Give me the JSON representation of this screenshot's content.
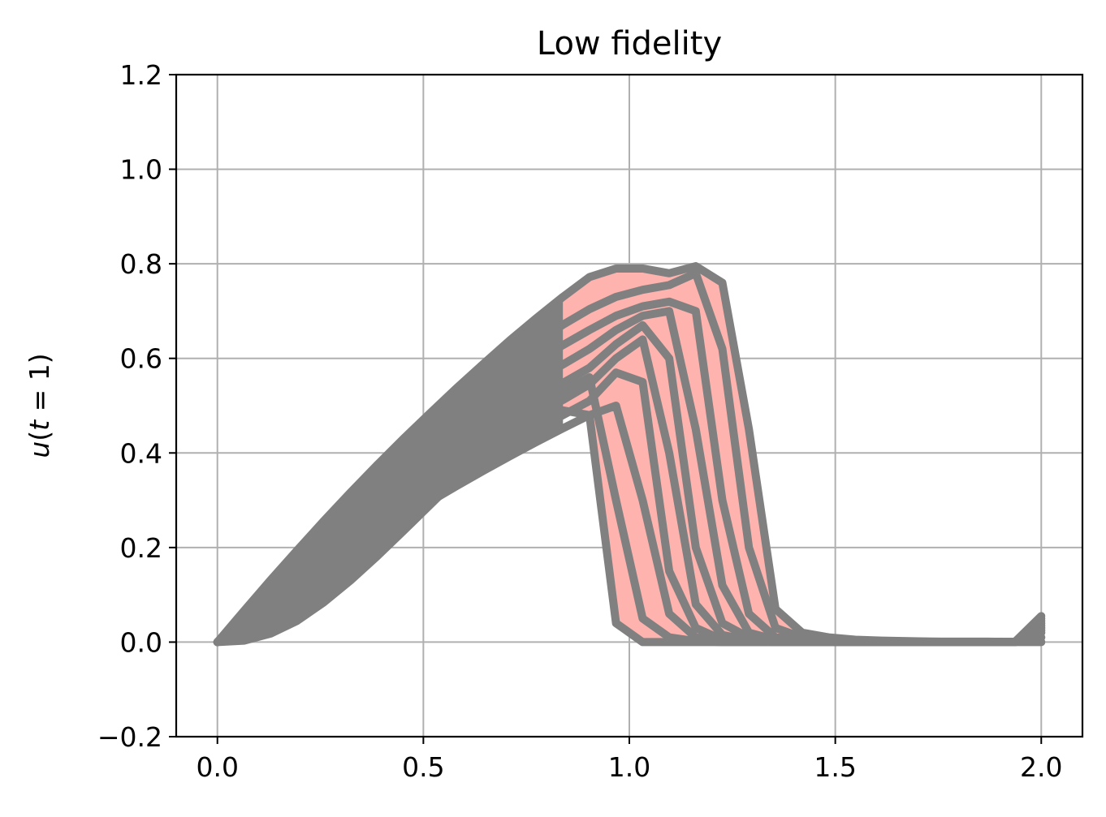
{
  "chart_data": {
    "type": "line",
    "title": "Low fidelity",
    "xlabel": "",
    "ylabel_parts": {
      "u": "u",
      "open": "(",
      "t": "t",
      "eq": " = 1)"
    },
    "xlim": [
      -0.1,
      2.1
    ],
    "ylim": [
      -0.2,
      1.2
    ],
    "xticks": [
      0.0,
      0.5,
      1.0,
      1.5,
      2.0
    ],
    "xtick_labels": [
      "0.0",
      "0.5",
      "1.0",
      "1.5",
      "2.0"
    ],
    "yticks": [
      -0.2,
      0.0,
      0.2,
      0.4,
      0.6,
      0.8,
      1.0,
      1.2
    ],
    "ytick_labels": [
      "−0.2",
      "0.0",
      "0.2",
      "0.4",
      "0.6",
      "0.8",
      "1.0",
      "1.2"
    ],
    "grid": true,
    "colors": {
      "lines": "#808080",
      "fill": "#ffb3ae",
      "grid": "#b0b0b0",
      "axes": "#000000"
    },
    "x": [
      0.0,
      0.0645,
      0.129,
      0.1935,
      0.258,
      0.3226,
      0.3871,
      0.4516,
      0.5161,
      0.5806,
      0.6452,
      0.7097,
      0.7742,
      0.8387,
      0.9032,
      0.9677,
      1.0323,
      1.0968,
      1.1613,
      1.2258,
      1.2903,
      1.3548,
      1.4194,
      1.4839,
      1.5484,
      1.6129,
      1.6774,
      1.7419,
      1.8065,
      1.871,
      1.9355,
      2.0
    ],
    "band": {
      "name": "range",
      "upper": [
        0.0,
        0.066,
        0.131,
        0.194,
        0.256,
        0.316,
        0.374,
        0.43,
        0.484,
        0.537,
        0.588,
        0.638,
        0.685,
        0.73,
        0.772,
        0.79,
        0.79,
        0.78,
        0.795,
        0.76,
        0.45,
        0.07,
        0.02,
        0.01,
        0.005,
        0.003,
        0.002,
        0.001,
        0.001,
        0.001,
        0.0,
        0.055
      ],
      "lower": [
        0.0,
        0.003,
        0.018,
        0.045,
        0.084,
        0.13,
        0.181,
        0.235,
        0.29,
        0.345,
        0.4,
        0.45,
        0.49,
        0.49,
        0.48,
        0.04,
        0.0,
        0.0,
        0.0,
        0.0,
        0.0,
        0.0,
        0.0,
        0.0,
        0.0,
        0.0,
        0.0,
        0.0,
        0.0,
        0.0,
        0.0,
        0.0
      ]
    },
    "series": [
      {
        "values": [
          0.0,
          0.066,
          0.131,
          0.194,
          0.256,
          0.316,
          0.374,
          0.43,
          0.484,
          0.537,
          0.588,
          0.638,
          0.685,
          0.73,
          0.772,
          0.79,
          0.79,
          0.78,
          0.795,
          0.76,
          0.45,
          0.07,
          0.02,
          0.01,
          0.005,
          0.003,
          0.002,
          0.001,
          0.001,
          0.001,
          0.0,
          0.055
        ]
      },
      {
        "values": [
          0.0,
          0.062,
          0.124,
          0.184,
          0.242,
          0.299,
          0.353,
          0.405,
          0.455,
          0.503,
          0.549,
          0.593,
          0.634,
          0.671,
          0.704,
          0.73,
          0.745,
          0.755,
          0.78,
          0.62,
          0.2,
          0.03,
          0.01,
          0.005,
          0.003,
          0.002,
          0.001,
          0.001,
          0.0,
          0.0,
          0.0,
          0.05
        ]
      },
      {
        "values": [
          0.0,
          0.058,
          0.116,
          0.172,
          0.227,
          0.28,
          0.331,
          0.38,
          0.427,
          0.472,
          0.515,
          0.556,
          0.594,
          0.628,
          0.66,
          0.69,
          0.71,
          0.72,
          0.7,
          0.3,
          0.06,
          0.01,
          0.005,
          0.003,
          0.002,
          0.001,
          0.001,
          0.0,
          0.0,
          0.0,
          0.0,
          0.045
        ]
      },
      {
        "values": [
          0.0,
          0.054,
          0.108,
          0.161,
          0.212,
          0.262,
          0.31,
          0.356,
          0.4,
          0.442,
          0.482,
          0.52,
          0.555,
          0.587,
          0.62,
          0.66,
          0.69,
          0.7,
          0.45,
          0.12,
          0.02,
          0.005,
          0.003,
          0.002,
          0.001,
          0.001,
          0.0,
          0.0,
          0.0,
          0.0,
          0.0,
          0.04
        ]
      },
      {
        "values": [
          0.0,
          0.05,
          0.1,
          0.149,
          0.197,
          0.243,
          0.288,
          0.331,
          0.372,
          0.411,
          0.449,
          0.484,
          0.517,
          0.548,
          0.58,
          0.63,
          0.67,
          0.6,
          0.2,
          0.04,
          0.01,
          0.003,
          0.002,
          0.001,
          0.001,
          0.0,
          0.0,
          0.0,
          0.0,
          0.0,
          0.0,
          0.035
        ]
      },
      {
        "values": [
          0.0,
          0.046,
          0.092,
          0.137,
          0.181,
          0.225,
          0.267,
          0.307,
          0.345,
          0.382,
          0.417,
          0.45,
          0.482,
          0.512,
          0.545,
          0.6,
          0.64,
          0.4,
          0.08,
          0.015,
          0.004,
          0.002,
          0.001,
          0.0,
          0.0,
          0.0,
          0.0,
          0.0,
          0.0,
          0.0,
          0.0,
          0.03
        ]
      },
      {
        "values": [
          0.0,
          0.042,
          0.084,
          0.126,
          0.167,
          0.207,
          0.246,
          0.284,
          0.32,
          0.355,
          0.388,
          0.42,
          0.45,
          0.48,
          0.51,
          0.57,
          0.55,
          0.15,
          0.03,
          0.005,
          0.002,
          0.001,
          0.0,
          0.0,
          0.0,
          0.0,
          0.0,
          0.0,
          0.0,
          0.0,
          0.0,
          0.025
        ]
      },
      {
        "values": [
          0.0,
          0.038,
          0.076,
          0.114,
          0.152,
          0.189,
          0.226,
          0.262,
          0.297,
          0.33,
          0.362,
          0.393,
          0.423,
          0.452,
          0.48,
          0.5,
          0.3,
          0.06,
          0.01,
          0.002,
          0.001,
          0.0,
          0.0,
          0.0,
          0.0,
          0.0,
          0.0,
          0.0,
          0.0,
          0.0,
          0.0,
          0.02
        ]
      },
      {
        "values": [
          0.0,
          0.003,
          0.018,
          0.045,
          0.084,
          0.13,
          0.181,
          0.235,
          0.29,
          0.345,
          0.4,
          0.45,
          0.49,
          0.49,
          0.48,
          0.04,
          0.0,
          0.0,
          0.0,
          0.0,
          0.0,
          0.0,
          0.0,
          0.0,
          0.0,
          0.0,
          0.0,
          0.0,
          0.0,
          0.0,
          0.0,
          0.0
        ]
      },
      {
        "values": [
          0.0,
          0.02,
          0.05,
          0.09,
          0.13,
          0.175,
          0.22,
          0.265,
          0.31,
          0.355,
          0.4,
          0.445,
          0.49,
          0.53,
          0.56,
          0.3,
          0.05,
          0.01,
          0.002,
          0.0,
          0.0,
          0.0,
          0.0,
          0.0,
          0.0,
          0.0,
          0.0,
          0.0,
          0.0,
          0.0,
          0.0,
          0.01
        ]
      }
    ]
  }
}
